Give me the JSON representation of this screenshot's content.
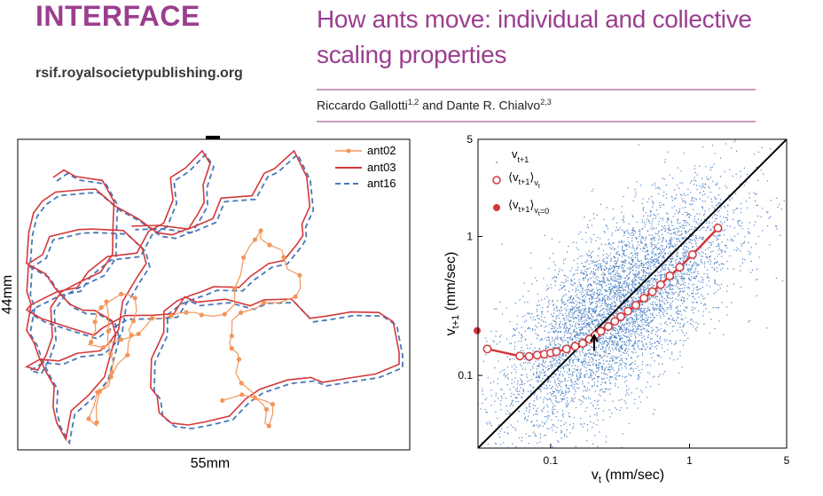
{
  "header": {
    "journal_name": "INTERFACE",
    "journal_site": "rsif.royalsocietypublishing.org",
    "title": "How ants move: individual and collective scaling properties",
    "authors_text": "Riccardo Gallotti",
    "authors_sup1": "1,2",
    "authors_and": " and Dante R. Chialvo",
    "authors_sup2": "2,3"
  },
  "colors": {
    "accent": "#9b3e8f",
    "ant02": "#f4955a",
    "ant03": "#d3383b",
    "ant16": "#4a78b8",
    "scatter": "#4a7fc4",
    "fit": "#d3383b"
  },
  "chart_data": [
    {
      "type": "line",
      "xlabel": "55mm",
      "ylabel": "44mm",
      "legend": "top-right",
      "series": [
        {
          "name": "ant02",
          "style": "line with dots"
        },
        {
          "name": "ant03",
          "style": "solid"
        },
        {
          "name": "ant16",
          "style": "dashed"
        }
      ]
    },
    {
      "type": "scatter",
      "xscale": "log",
      "yscale": "log",
      "xlim": [
        0.03,
        5
      ],
      "ylim": [
        0.03,
        5
      ],
      "xticks": [
        "0.1",
        "1",
        "5"
      ],
      "yticks": [
        "0.1",
        "1",
        "5"
      ],
      "xlabel_main": "v",
      "xlabel_sub": "t",
      "xlabel_rest": " (mm/sec)",
      "ylabel_main": "v",
      "ylabel_sub": "t+1",
      "ylabel_rest": " (mm/sec)",
      "legend": "top-left",
      "legend_entries": {
        "scatter_main": "v",
        "scatter_sub": "t+1",
        "mean_main": "⟨v",
        "mean_sub1": "t+1",
        "mean_mid": "⟩",
        "mean_sub2": "v",
        "mean_sub2b": "t",
        "zero_main": "⟨v",
        "zero_sub1": "t+1",
        "zero_mid": "⟩",
        "zero_sub2": "v",
        "zero_sub2b": "t",
        "zero_sub3": "=0"
      },
      "conditional_mean": {
        "x": [
          0.035,
          0.06,
          0.07,
          0.08,
          0.09,
          0.1,
          0.11,
          0.13,
          0.15,
          0.17,
          0.19,
          0.21,
          0.23,
          0.26,
          0.29,
          0.32,
          0.36,
          0.41,
          0.47,
          0.54,
          0.62,
          0.72,
          0.85,
          1.05,
          1.6
        ],
        "y": [
          0.155,
          0.138,
          0.137,
          0.14,
          0.142,
          0.145,
          0.148,
          0.155,
          0.162,
          0.17,
          0.182,
          0.195,
          0.208,
          0.225,
          0.245,
          0.265,
          0.29,
          0.32,
          0.36,
          0.4,
          0.45,
          0.52,
          0.6,
          0.74,
          1.15
        ]
      },
      "zero_value": 0.21,
      "diagonal": true
    }
  ]
}
